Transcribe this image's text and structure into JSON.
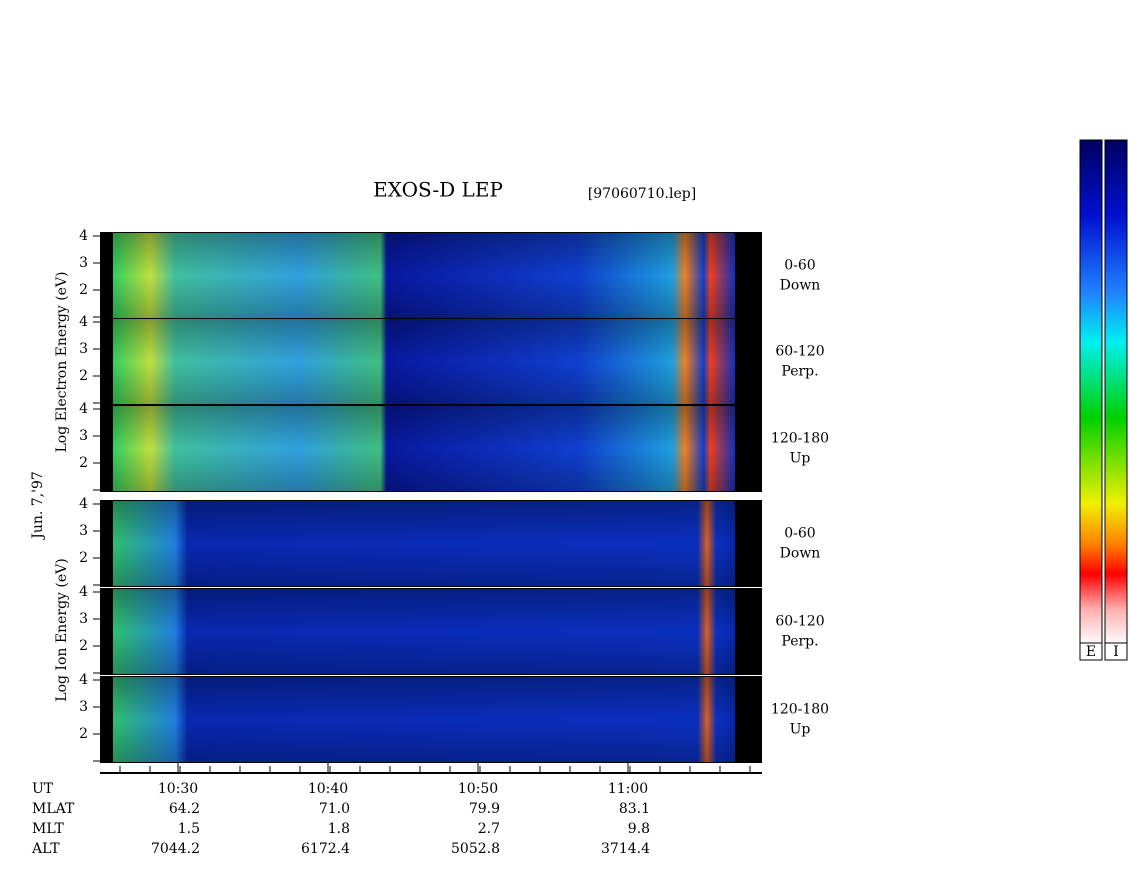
{
  "title": "EXOS-D LEP",
  "file": "[97060710.lep]",
  "date": "Jun. 7,'97",
  "electron_axis_label": "Log Electron Energy (eV)",
  "ion_axis_label": "Log Ion Energy (eV)",
  "energy_ticks": [
    4,
    3,
    2
  ],
  "panels": [
    {
      "range": "0-60",
      "direction": "Down"
    },
    {
      "range": "60-120",
      "direction": "Perp."
    },
    {
      "range": "120-180",
      "direction": "Up"
    },
    {
      "range": "0-60",
      "direction": "Down"
    },
    {
      "range": "60-120",
      "direction": "Perp."
    },
    {
      "range": "120-180",
      "direction": "Up"
    }
  ],
  "time_ticks": [
    "10:30",
    "10:40",
    "10:50",
    "11:00"
  ],
  "ephemeris": {
    "labels": [
      "UT",
      "MLAT",
      "MLT",
      "ALT"
    ],
    "rows": [
      [
        "64.2",
        "71.0",
        "79.9",
        "83.1"
      ],
      [
        "1.5",
        "1.8",
        "2.7",
        "9.8"
      ],
      [
        "7044.2",
        "6172.4",
        "5052.8",
        "3714.4"
      ]
    ]
  },
  "colorbar_labels": [
    "E",
    "I"
  ]
}
